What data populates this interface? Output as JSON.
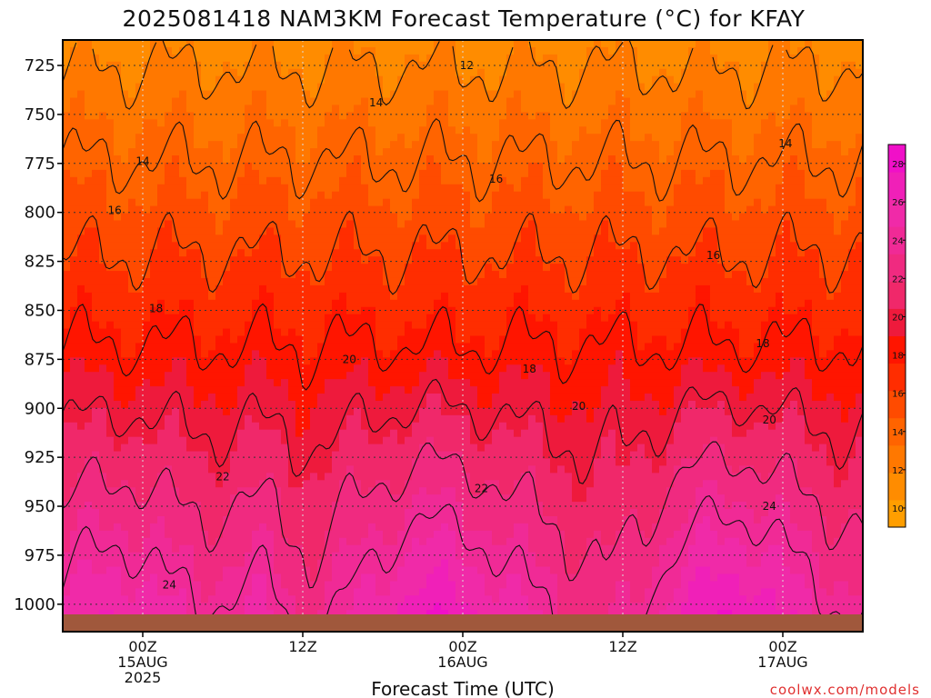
{
  "chart_data": {
    "type": "heatmap",
    "title": "2025081418 NAM3KM Forecast Temperature (°C) for KFAY",
    "xlabel": "Forecast Time (UTC)",
    "ylabel": "",
    "x_ticks": [
      {
        "lines": [
          "00Z",
          "15AUG",
          "2025"
        ],
        "hour": 6
      },
      {
        "lines": [
          "12Z"
        ],
        "hour": 18
      },
      {
        "lines": [
          "00Z",
          "16AUG"
        ],
        "hour": 30
      },
      {
        "lines": [
          "12Z"
        ],
        "hour": 42
      },
      {
        "lines": [
          "00Z",
          "17AUG"
        ],
        "hour": 54
      }
    ],
    "xlim_hours": [
      0,
      60
    ],
    "y_ticks": [
      725,
      750,
      775,
      800,
      825,
      850,
      875,
      900,
      925,
      950,
      975,
      1000
    ],
    "ylim_hpa": [
      712,
      1014
    ],
    "grid": true,
    "colorbar": {
      "labels": [
        10,
        12,
        14,
        16,
        18,
        20,
        22,
        24,
        26,
        28
      ],
      "range": [
        9,
        29
      ],
      "colors": [
        "#ff9e00",
        "#ff8c00",
        "#ff7800",
        "#ff6400",
        "#ff4b00",
        "#ff2d00",
        "#ff1500",
        "#ee1a3c",
        "#f0286a",
        "#f02a80",
        "#f02a96",
        "#f02aa8",
        "#f020b8",
        "#f010c8"
      ]
    },
    "surface_color": "#a0583c",
    "contour_labels": [
      {
        "text": "12",
        "hour": 30.3,
        "p": 725
      },
      {
        "text": "14",
        "hour": 6.0,
        "p": 774
      },
      {
        "text": "14",
        "hour": 23.5,
        "p": 744
      },
      {
        "text": "14",
        "hour": 54.2,
        "p": 765
      },
      {
        "text": "16",
        "hour": 3.9,
        "p": 799
      },
      {
        "text": "16",
        "hour": 32.5,
        "p": 783
      },
      {
        "text": "16",
        "hour": 48.8,
        "p": 822
      },
      {
        "text": "18",
        "hour": 7.0,
        "p": 849
      },
      {
        "text": "18",
        "hour": 35.0,
        "p": 880
      },
      {
        "text": "18",
        "hour": 52.5,
        "p": 867
      },
      {
        "text": "20",
        "hour": 21.5,
        "p": 875
      },
      {
        "text": "20",
        "hour": 38.7,
        "p": 899
      },
      {
        "text": "20",
        "hour": 53.0,
        "p": 906
      },
      {
        "text": "22",
        "hour": 12.0,
        "p": 935
      },
      {
        "text": "22",
        "hour": 31.4,
        "p": 941
      },
      {
        "text": "24",
        "hour": 8.0,
        "p": 990
      },
      {
        "text": "24",
        "hour": 53.0,
        "p": 950
      }
    ]
  },
  "credit": "coolwx.com/models"
}
